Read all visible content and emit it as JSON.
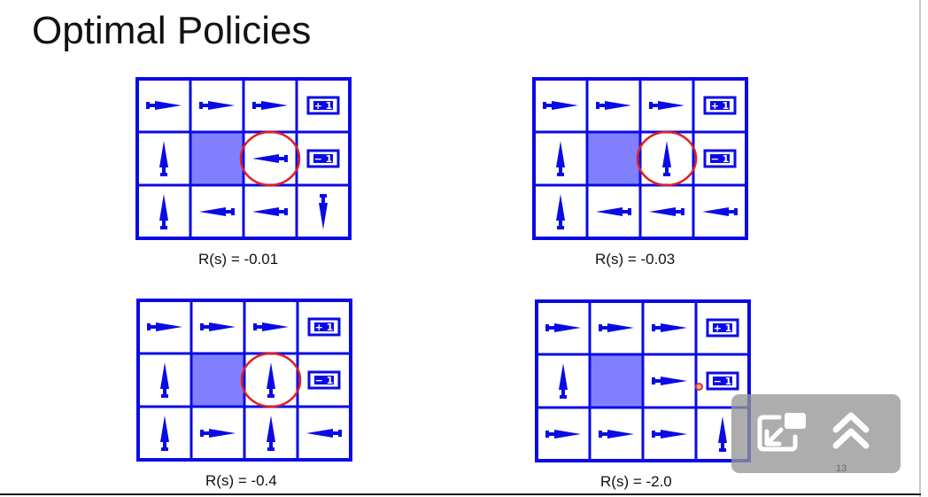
{
  "slide": {
    "title": "Optimal Policies",
    "page_number": "13"
  },
  "colors": {
    "grid_blue": "#0a0ae6",
    "wall_fill": "#8080ff",
    "highlight_circle": "#e02020"
  },
  "policies": [
    {
      "caption": "R(s) = -0.01",
      "highlight": [
        1,
        2
      ],
      "grid": [
        [
          "right",
          "right",
          "right",
          "+1"
        ],
        [
          "up",
          "wall",
          "left",
          "-1"
        ],
        [
          "up",
          "left",
          "left",
          "down"
        ]
      ]
    },
    {
      "caption": "R(s) = -0.03",
      "highlight": [
        1,
        2
      ],
      "grid": [
        [
          "right",
          "right",
          "right",
          "+1"
        ],
        [
          "up",
          "wall",
          "up",
          "-1"
        ],
        [
          "up",
          "left",
          "left",
          "left"
        ]
      ]
    },
    {
      "caption": "R(s) = -0.4",
      "highlight": [
        1,
        2
      ],
      "grid": [
        [
          "right",
          "right",
          "right",
          "+1"
        ],
        [
          "up",
          "wall",
          "up",
          "-1"
        ],
        [
          "up",
          "right",
          "up",
          "left"
        ]
      ]
    },
    {
      "caption": "R(s) = -2.0",
      "highlight": null,
      "grid": [
        [
          "right",
          "right",
          "right",
          "+1"
        ],
        [
          "up",
          "wall",
          "right",
          "-1"
        ],
        [
          "right",
          "right",
          "right",
          "up"
        ]
      ]
    }
  ],
  "overlay": {
    "exit_pip_icon": "exit-picture-in-picture-icon",
    "expand_icon": "double-chevron-up-icon"
  }
}
